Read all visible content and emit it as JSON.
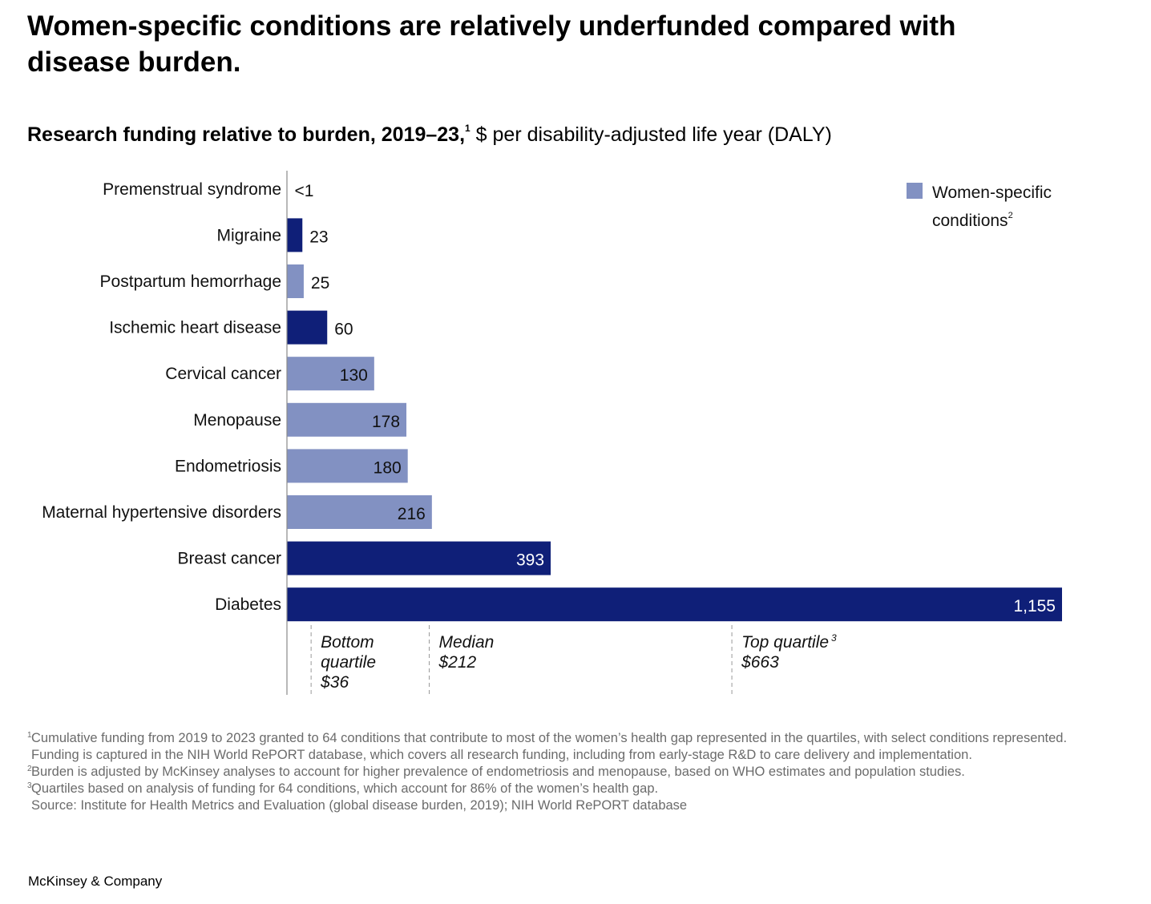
{
  "title": "Women-specific conditions are relatively underfunded compared with disease burden.",
  "subtitle": {
    "bold": "Research funding relative to burden, 2019–23,",
    "sup": "1",
    "regular": " $ per disability-adjusted life year (DALY)"
  },
  "legend": {
    "label": "Women-specific conditions",
    "sup": "2",
    "color": "#8291c2"
  },
  "colors": {
    "women_specific": "#8291c2",
    "other": "#0f1f78"
  },
  "chart_data": {
    "type": "bar",
    "orientation": "horizontal",
    "categories": [
      "Premenstrual syndrome",
      "Migraine",
      "Postpartum hemorrhage",
      "Ischemic heart disease",
      "Cervical cancer",
      "Menopause",
      "Endometriosis",
      "Maternal hypertensive disorders",
      "Breast cancer",
      "Diabetes"
    ],
    "values": [
      0.5,
      23,
      25,
      60,
      130,
      178,
      180,
      216,
      393,
      1155
    ],
    "value_labels": [
      "<1",
      "23",
      "25",
      "60",
      "130",
      "178",
      "180",
      "216",
      "393",
      "1,155"
    ],
    "women_specific": [
      true,
      false,
      true,
      false,
      true,
      true,
      true,
      true,
      false,
      false
    ],
    "xlim": [
      0,
      1155
    ],
    "reference_lines": [
      {
        "value": 36,
        "lines": [
          "Bottom",
          "quartile",
          "$36"
        ],
        "sup": ""
      },
      {
        "value": 212,
        "lines": [
          "Median",
          "$212"
        ],
        "sup": ""
      },
      {
        "value": 663,
        "lines": [
          "Top quartile",
          "$663"
        ],
        "sup": "3"
      }
    ]
  },
  "footnotes": [
    {
      "sup": "1",
      "text": "Cumulative funding from 2019 to 2023 granted to 64 conditions that contribute to most of the women’s health gap represented in the quartiles, with select conditions represented. Funding is captured in the NIH World RePORT database, which covers all research funding, including from early-stage R&D to care delivery and implementation."
    },
    {
      "sup": "2",
      "text": "Burden is adjusted by McKinsey analyses to account for higher prevalence of endometriosis and menopause, based on WHO estimates and population studies."
    },
    {
      "sup": "3",
      "text": "Quartiles based on analysis of funding for 64 conditions, which account for 86% of the women’s health gap."
    },
    {
      "sup": "",
      "text": "Source: Institute for Health Metrics and Evaluation (global disease burden, 2019); NIH World RePORT database"
    }
  ],
  "brand": "McKinsey & Company"
}
